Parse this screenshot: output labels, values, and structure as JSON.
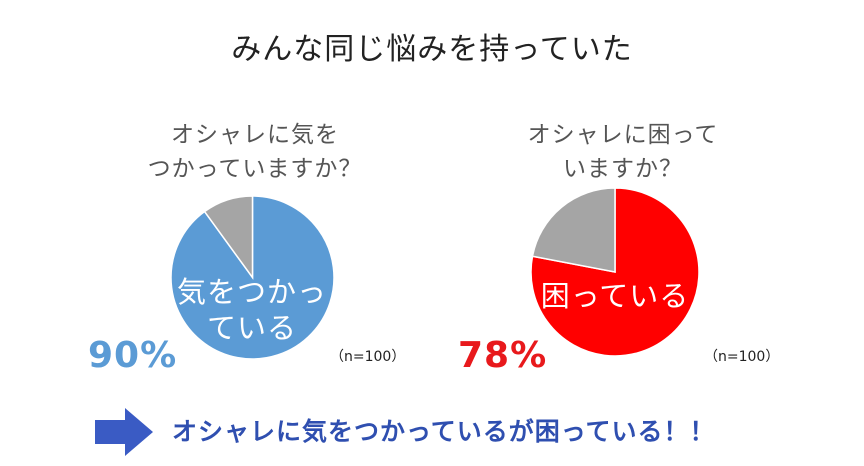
{
  "title": "みんな同じ悩みを持っていた",
  "chart_data": [
    {
      "type": "pie",
      "title_lines": [
        "オシャレに気を",
        "つかっていますか？"
      ],
      "slices": [
        {
          "label": "気をつかっている",
          "value": 90,
          "color": "#5b9bd5"
        },
        {
          "label": "",
          "value": 10,
          "color": "#a5a5a5"
        }
      ],
      "inner_label_lines": [
        "気をつかっ",
        "ている"
      ],
      "percent_label": "90%",
      "percent_color": "#5b9bd5",
      "sample": "（n=100）"
    },
    {
      "type": "pie",
      "title_lines": [
        "オシャレに困って",
        "いますか？"
      ],
      "slices": [
        {
          "label": "困っている",
          "value": 78,
          "color": "#ff0000"
        },
        {
          "label": "",
          "value": 22,
          "color": "#a5a5a5"
        }
      ],
      "inner_label_lines": [
        "困っている"
      ],
      "percent_label": "78%",
      "percent_color": "#e8191c",
      "sample": "（n=100）"
    }
  ],
  "conclusion": {
    "text": "オシャレに気をつかっているが困っている！！",
    "color": "#2f4fb0",
    "icon": "arrow-right-icon"
  }
}
